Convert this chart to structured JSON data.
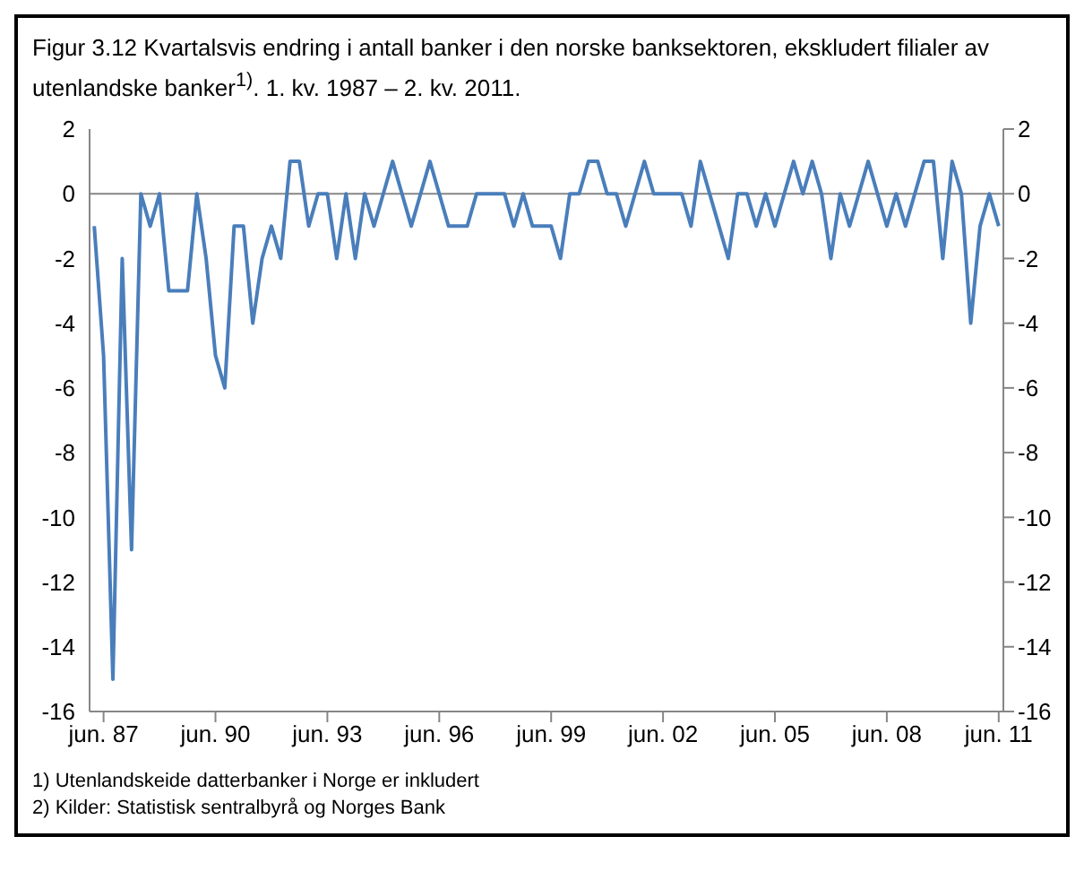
{
  "chart_data": {
    "type": "line",
    "title": "Figur 3.12 Kvartalsvis endring i antall banker i den norske banksektoren, ekskludert filialer av utenlandske banker$^{1)}$. 1. kv. 1987 – 2. kv. 2011.",
    "categories": [
      null,
      "jun. 87",
      null,
      null,
      null,
      null,
      null,
      null,
      null,
      null,
      null,
      null,
      null,
      "jun. 90",
      null,
      null,
      null,
      null,
      null,
      null,
      null,
      null,
      null,
      null,
      null,
      "jun. 93",
      null,
      null,
      null,
      null,
      null,
      null,
      null,
      null,
      null,
      null,
      null,
      "jun. 96",
      null,
      null,
      null,
      null,
      null,
      null,
      null,
      null,
      null,
      null,
      null,
      "jun. 99",
      null,
      null,
      null,
      null,
      null,
      null,
      null,
      null,
      null,
      null,
      null,
      "jun. 02",
      null,
      null,
      null,
      null,
      null,
      null,
      null,
      null,
      null,
      null,
      null,
      "jun. 05",
      null,
      null,
      null,
      null,
      null,
      null,
      null,
      null,
      null,
      null,
      null,
      "jun. 08",
      null,
      null,
      null,
      null,
      null,
      null,
      null,
      null,
      null,
      null,
      null,
      "jun. 11"
    ],
    "series": [
      {
        "color": "#4a7ebb",
        "values": [
          -1,
          -5,
          -15,
          -2,
          -11,
          0,
          -1,
          0,
          -3,
          -3,
          -3,
          0,
          -2,
          -5,
          -6,
          -1,
          -1,
          -4,
          -2,
          -1,
          -2,
          1,
          1,
          -1,
          0,
          0,
          -2,
          0,
          -2,
          0,
          -1,
          0,
          1,
          0,
          -1,
          0,
          1,
          0,
          -1,
          -1,
          -1,
          0,
          0,
          0,
          0,
          -1,
          0,
          -1,
          -1,
          -1,
          -2,
          0,
          0,
          1,
          1,
          0,
          0,
          -1,
          0,
          1,
          0,
          0,
          0,
          0,
          -1,
          1,
          0,
          -1,
          -2,
          0,
          0,
          -1,
          0,
          -1,
          0,
          1,
          0,
          1,
          0,
          -2,
          0,
          -1,
          0,
          1,
          0,
          -1,
          0,
          -1,
          0,
          1,
          1,
          -2,
          1,
          0,
          -4,
          -1,
          0,
          -1
        ]
      }
    ],
    "ylim": [
      -16,
      2
    ],
    "yticks": [
      -16,
      -14,
      -12,
      -10,
      -8,
      -6,
      -4,
      -2,
      0,
      2
    ],
    "y2lim": [
      -16,
      2
    ],
    "y2ticks": [
      -16,
      -14,
      -12,
      -10,
      -8,
      -6,
      -4,
      -2,
      0,
      2
    ],
    "ref_lines": [
      {
        "axis": "y",
        "value": 0,
        "color": "#868686"
      }
    ],
    "grid": false,
    "legend": false,
    "marker": "none",
    "line_style": "solid",
    "annotations": [
      "1) Utenlandskeide datterbanker i Norge er inkludert",
      "2) Kilder: Statistisk sentralbyrå og Norges Bank"
    ]
  }
}
